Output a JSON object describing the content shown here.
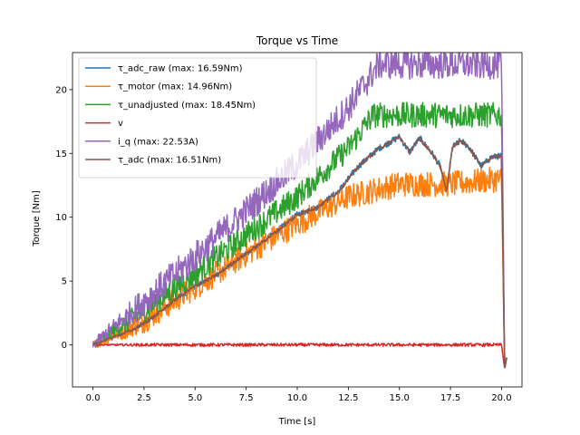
{
  "chart_data": {
    "type": "line",
    "title": "Torque vs Time",
    "xlabel": "Time [s]",
    "ylabel": "Torque [Nm]",
    "xlim": [
      -1.0,
      21.0
    ],
    "ylim": [
      -3.3,
      22.9
    ],
    "xticks": [
      0,
      2.5,
      5,
      7.5,
      10,
      12.5,
      15,
      17.5,
      20
    ],
    "xtick_labels": [
      "0.0",
      "2.5",
      "5.0",
      "7.5",
      "10.0",
      "12.5",
      "15.0",
      "17.5",
      "20.0"
    ],
    "yticks": [
      0,
      5,
      10,
      15,
      20
    ],
    "ytick_labels": [
      "0",
      "5",
      "10",
      "15",
      "20"
    ],
    "grid": false,
    "legend_position": "upper-left",
    "series": [
      {
        "name": "τ_adc_raw (max: 16.59Nm)",
        "color": "#1f77b4",
        "noise": 0.25,
        "points": [
          [
            0,
            0
          ],
          [
            2,
            1.2
          ],
          [
            3,
            2.2
          ],
          [
            4,
            3.5
          ],
          [
            5,
            4.6
          ],
          [
            6,
            5.4
          ],
          [
            7,
            6.6
          ],
          [
            8,
            7.7
          ],
          [
            9,
            8.9
          ],
          [
            10,
            10.2
          ],
          [
            11,
            10.8
          ],
          [
            12,
            12.0
          ],
          [
            13,
            14.0
          ],
          [
            14,
            15.4
          ],
          [
            15,
            16.3
          ],
          [
            15.5,
            15.1
          ],
          [
            16,
            16.2
          ],
          [
            16.6,
            15.0
          ],
          [
            17,
            14.0
          ],
          [
            17.3,
            12.0
          ],
          [
            17.6,
            15.5
          ],
          [
            18,
            16.0
          ],
          [
            18.4,
            15.5
          ],
          [
            19,
            14.0
          ],
          [
            19.5,
            14.7
          ],
          [
            20,
            14.8
          ],
          [
            20.15,
            -1.9
          ],
          [
            20.25,
            -1.0
          ]
        ]
      },
      {
        "name": "τ_motor (max: 14.96Nm)",
        "color": "#ff7f0e",
        "noise": 1.0,
        "points": [
          [
            0,
            0
          ],
          [
            2.5,
            1.9
          ],
          [
            5,
            4.5
          ],
          [
            7.5,
            7.1
          ],
          [
            10,
            9.5
          ],
          [
            12.5,
            11.6
          ],
          [
            15,
            12.6
          ],
          [
            17.5,
            12.6
          ],
          [
            20,
            13.0
          ],
          [
            20.15,
            -1.9
          ],
          [
            20.25,
            -1.0
          ]
        ]
      },
      {
        "name": "τ_unadjusted (max: 18.45Nm)",
        "color": "#2ca02c",
        "noise": 1.0,
        "points": [
          [
            0,
            0
          ],
          [
            2.5,
            2.7
          ],
          [
            5,
            5.6
          ],
          [
            7.5,
            8.6
          ],
          [
            10,
            11.6
          ],
          [
            12.5,
            15.4
          ],
          [
            13.7,
            18.0
          ],
          [
            20,
            18.0
          ],
          [
            20.15,
            -1.9
          ],
          [
            20.25,
            -1.0
          ]
        ]
      },
      {
        "name": "v",
        "color": "#d62728",
        "noise": 0.12,
        "points": [
          [
            0,
            0
          ],
          [
            20,
            0
          ],
          [
            20.15,
            -1.9
          ],
          [
            20.25,
            -1.0
          ]
        ]
      },
      {
        "name": "i_q (max: 22.53A)",
        "color": "#9467bd",
        "noise": 1.2,
        "points": [
          [
            0,
            0
          ],
          [
            2.5,
            3.4
          ],
          [
            5,
            6.9
          ],
          [
            7.5,
            10.5
          ],
          [
            10,
            14.2
          ],
          [
            12.5,
            18.6
          ],
          [
            14,
            22.0
          ],
          [
            20,
            22.0
          ],
          [
            20.15,
            -1.9
          ],
          [
            20.25,
            -1.0
          ]
        ]
      },
      {
        "name": "τ_adc (max: 16.51Nm)",
        "color": "#8c564b",
        "noise": 0.15,
        "points": [
          [
            0,
            0
          ],
          [
            2,
            1.2
          ],
          [
            3,
            2.2
          ],
          [
            4,
            3.5
          ],
          [
            5,
            4.6
          ],
          [
            6,
            5.4
          ],
          [
            7,
            6.6
          ],
          [
            8,
            7.7
          ],
          [
            9,
            8.9
          ],
          [
            10,
            10.2
          ],
          [
            11,
            10.8
          ],
          [
            12,
            12.0
          ],
          [
            13,
            14.0
          ],
          [
            14,
            15.4
          ],
          [
            15,
            16.3
          ],
          [
            15.5,
            15.1
          ],
          [
            16,
            16.2
          ],
          [
            16.6,
            15.0
          ],
          [
            17,
            14.0
          ],
          [
            17.3,
            12.0
          ],
          [
            17.6,
            15.5
          ],
          [
            18,
            16.0
          ],
          [
            18.4,
            15.5
          ],
          [
            19,
            14.0
          ],
          [
            19.5,
            14.7
          ],
          [
            20,
            14.8
          ],
          [
            20.15,
            -1.9
          ],
          [
            20.25,
            -1.0
          ]
        ]
      }
    ]
  }
}
